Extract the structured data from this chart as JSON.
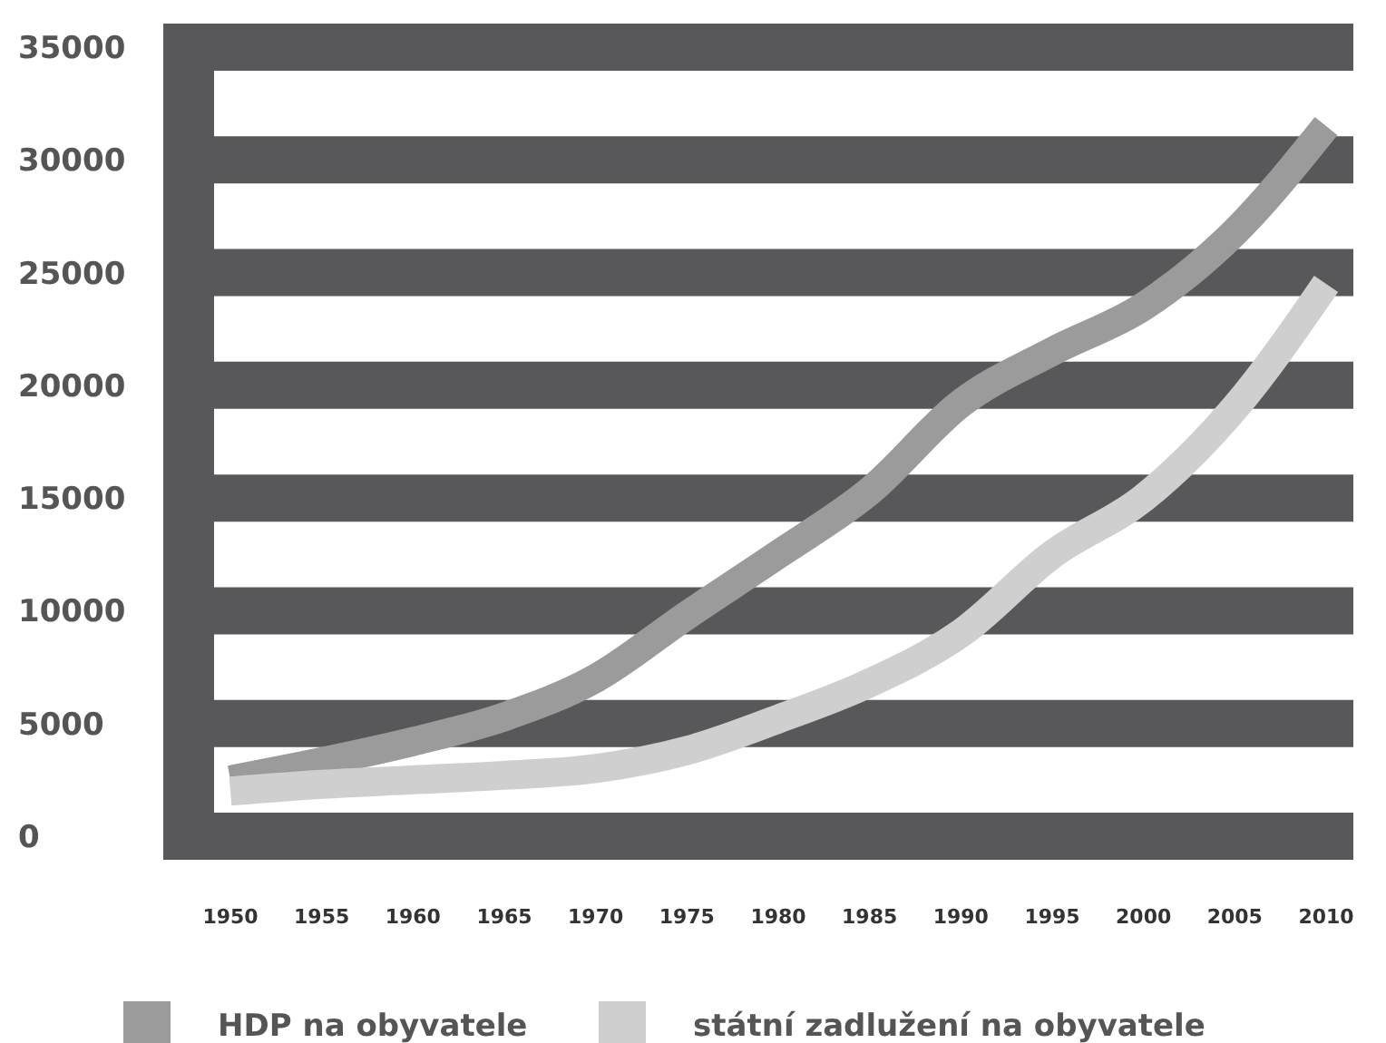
{
  "chart_data": {
    "type": "line",
    "x": [
      1950,
      1955,
      1960,
      1965,
      1970,
      1975,
      1980,
      1985,
      1990,
      1995,
      2000,
      2005,
      2010
    ],
    "series": [
      {
        "name": "HDP na obyvatele",
        "color": "#9b9b9b",
        "values": [
          2500,
          3300,
          4200,
          5300,
          7000,
          9800,
          12500,
          15300,
          19200,
          21500,
          23500,
          26800,
          31500
        ]
      },
      {
        "name": "státní zadlužení na obyvatele",
        "color": "#cfcfcf",
        "values": [
          2000,
          2300,
          2500,
          2700,
          3000,
          3800,
          5200,
          6800,
          9000,
          12500,
          15000,
          19000,
          24500
        ]
      }
    ],
    "xlim": [
      1950,
      2010
    ],
    "xticks": [
      1950,
      1955,
      1960,
      1965,
      1970,
      1975,
      1980,
      1985,
      1990,
      1995,
      2000,
      2005,
      2010
    ],
    "ylim": [
      0,
      35000
    ],
    "yticks": [
      0,
      5000,
      10000,
      15000,
      20000,
      25000,
      30000,
      35000
    ],
    "grid": "y",
    "legend": "bottom",
    "marker": "none",
    "line_style": "solid"
  }
}
